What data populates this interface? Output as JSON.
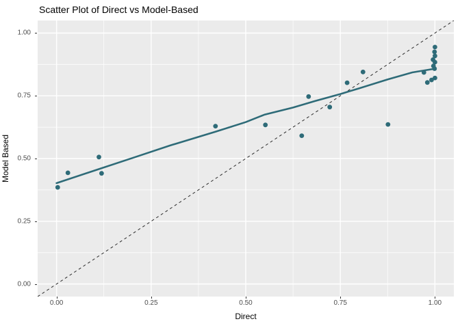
{
  "chart_data": {
    "type": "scatter",
    "title": "Scatter Plot of Direct vs Model-Based",
    "xlabel": "Direct",
    "ylabel": "Model Based",
    "xlim": [
      -0.05,
      1.05
    ],
    "ylim": [
      -0.05,
      1.05
    ],
    "x_ticks": [
      0.0,
      0.25,
      0.5,
      0.75,
      1.0
    ],
    "x_tick_labels": [
      "0.00",
      "0.25",
      "0.50",
      "0.75",
      "1.00"
    ],
    "y_ticks": [
      0.0,
      0.25,
      0.5,
      0.75,
      1.0
    ],
    "y_tick_labels": [
      "0.00",
      "0.25",
      "0.50",
      "0.75",
      "1.00"
    ],
    "x_minor_ticks": [
      0.125,
      0.375,
      0.625,
      0.875
    ],
    "y_minor_ticks": [
      0.125,
      0.375,
      0.625,
      0.875
    ],
    "grid": true,
    "legend": "none",
    "points": [
      [
        0.003,
        0.385
      ],
      [
        0.03,
        0.443
      ],
      [
        0.112,
        0.506
      ],
      [
        0.119,
        0.441
      ],
      [
        0.42,
        0.629
      ],
      [
        0.552,
        0.634
      ],
      [
        0.648,
        0.591
      ],
      [
        0.666,
        0.747
      ],
      [
        0.722,
        0.705
      ],
      [
        0.768,
        0.802
      ],
      [
        0.81,
        0.845
      ],
      [
        0.876,
        0.636
      ],
      [
        0.971,
        0.843
      ],
      [
        0.98,
        0.803
      ],
      [
        0.991,
        0.813
      ],
      [
        1.0,
        0.821
      ],
      [
        0.996,
        0.869
      ],
      [
        0.999,
        0.858
      ],
      [
        0.995,
        0.894
      ],
      [
        1.0,
        0.884
      ],
      [
        1.0,
        0.909
      ],
      [
        0.999,
        0.925
      ],
      [
        1.0,
        0.944
      ]
    ],
    "smooth_line": [
      [
        0.0,
        0.402
      ],
      [
        0.1,
        0.452
      ],
      [
        0.2,
        0.502
      ],
      [
        0.3,
        0.552
      ],
      [
        0.42,
        0.607
      ],
      [
        0.5,
        0.645
      ],
      [
        0.55,
        0.675
      ],
      [
        0.625,
        0.703
      ],
      [
        0.683,
        0.729
      ],
      [
        0.75,
        0.757
      ],
      [
        0.8,
        0.78
      ],
      [
        0.875,
        0.815
      ],
      [
        0.94,
        0.843
      ],
      [
        1.0,
        0.858
      ]
    ],
    "identity_line": {
      "from": [
        -0.05,
        -0.05
      ],
      "to": [
        1.05,
        1.05
      ],
      "style": "dashed"
    },
    "colors": {
      "point": "#2e6b78",
      "smooth_line": "#2e6b78",
      "identity_line": "#2a2a2a",
      "panel_background": "#ebebeb",
      "gridline": "#ffffff",
      "tick_label": "#4d4d4d",
      "tick_mark": "#333333",
      "title": "#000000"
    }
  }
}
